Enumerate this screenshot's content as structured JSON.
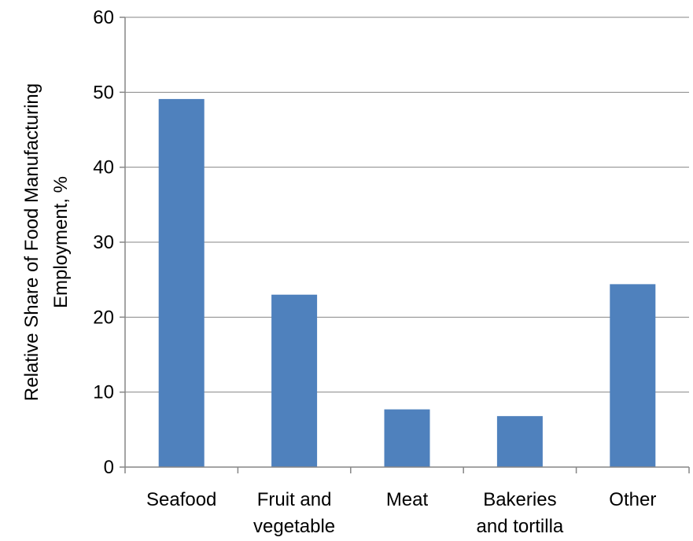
{
  "chart_data": {
    "type": "bar",
    "categories": [
      [
        "Seafood"
      ],
      [
        "Fruit and",
        "vegetable"
      ],
      [
        "Meat"
      ],
      [
        "Bakeries",
        "and tortilla"
      ],
      [
        "Other"
      ]
    ],
    "values": [
      49.1,
      23.0,
      7.7,
      6.8,
      24.4
    ],
    "title": "",
    "xlabel": "",
    "ylabel": [
      "Relative Share of Food Manufacturing",
      "Employment, %"
    ],
    "ylim": [
      0,
      60
    ],
    "yticks": [
      0,
      10,
      20,
      30,
      40,
      50,
      60
    ],
    "grid": true,
    "legend": "none",
    "bar_color": "#4f81bd"
  }
}
